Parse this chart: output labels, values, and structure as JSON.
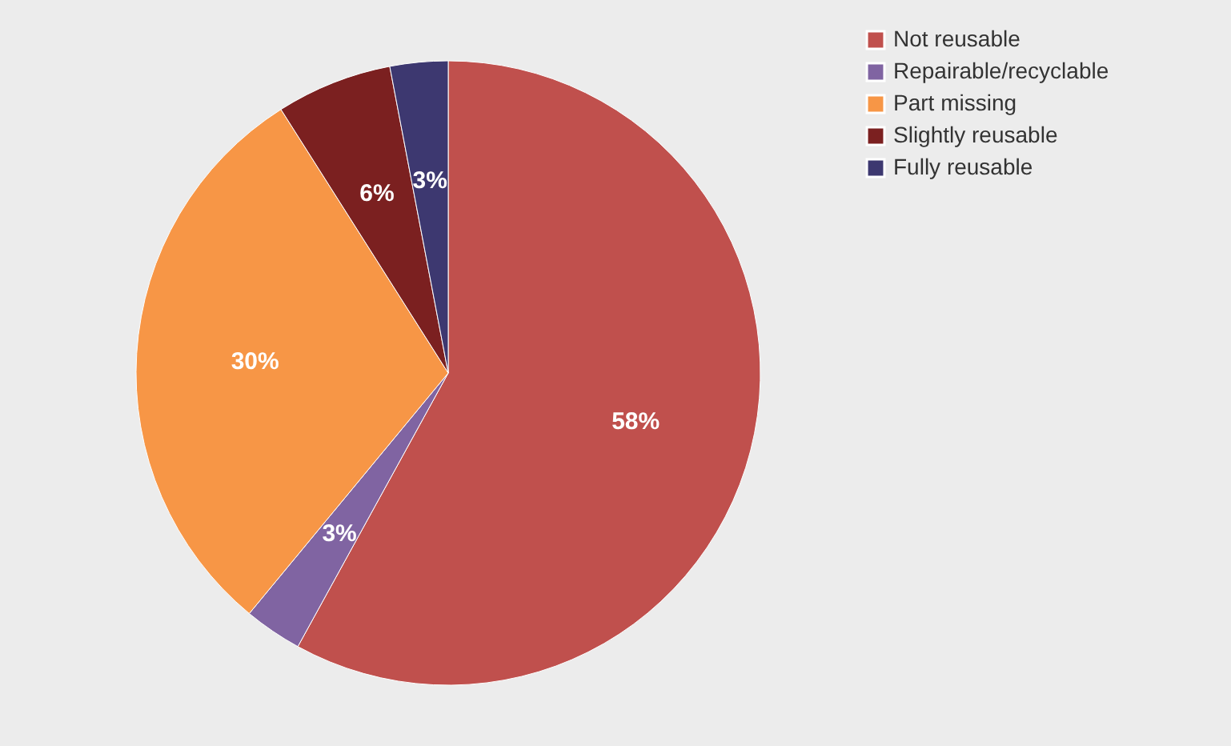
{
  "chart_data": {
    "type": "pie",
    "categories": [
      "Not reusable",
      "Repairable/recyclable",
      "Part missing",
      "Slightly reusable",
      "Fully reusable"
    ],
    "values": [
      58,
      3,
      30,
      6,
      3
    ],
    "colors": [
      "#c0504d",
      "#8064a2",
      "#f79646",
      "#7b2020",
      "#3d3870"
    ],
    "value_labels": [
      "58%",
      "3%",
      "30%",
      "6%",
      "3%"
    ],
    "legend": "right"
  }
}
